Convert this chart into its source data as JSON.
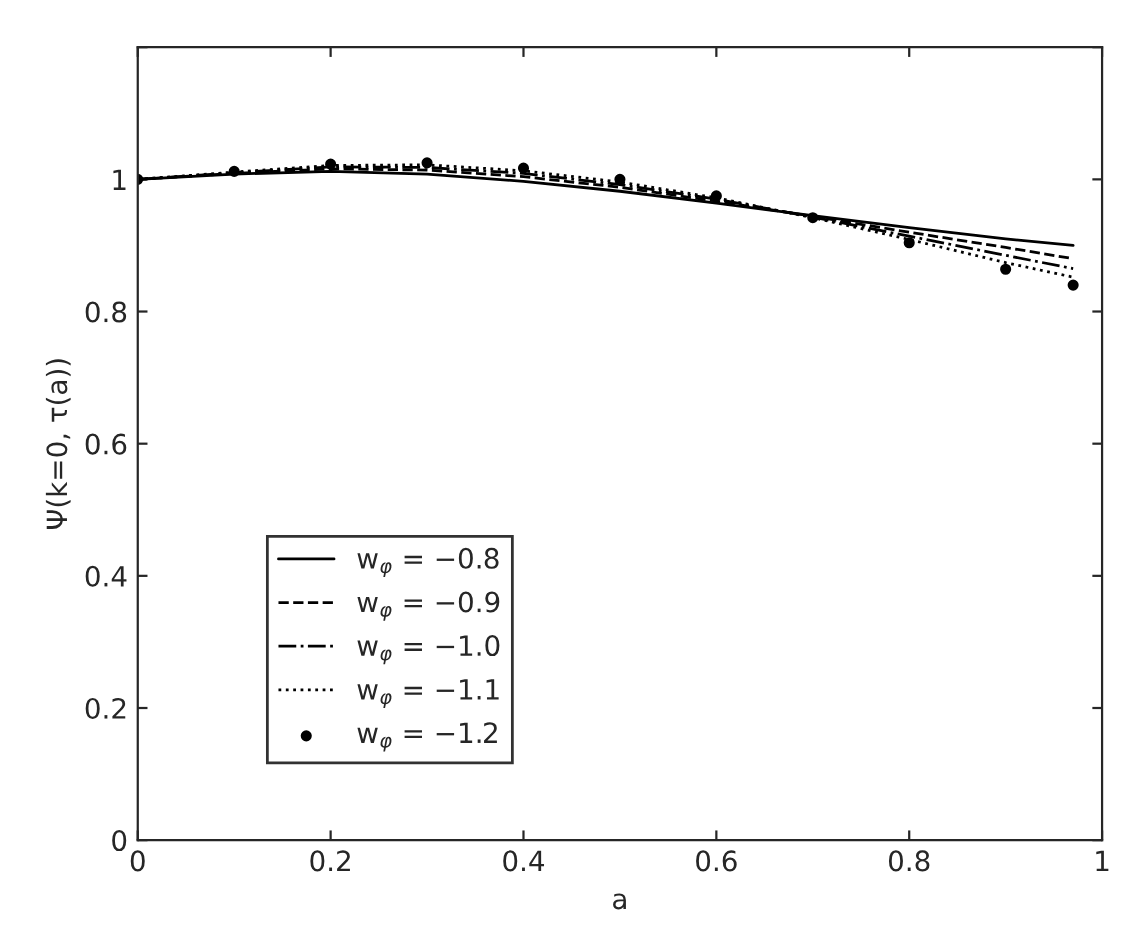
{
  "chart_data": {
    "type": "line",
    "xlabel": "a",
    "ylabel": "Ψ(k=0, τ(a))",
    "x": [
      0,
      0.1,
      0.2,
      0.3,
      0.4,
      0.5,
      0.6,
      0.7,
      0.8,
      0.9,
      0.97
    ],
    "series": [
      {
        "name": "w$_{φ}$ = −0.8",
        "color": "#000000",
        "line_style": "solid",
        "marker": "none",
        "values": [
          1.0,
          1.008,
          1.012,
          1.008,
          0.997,
          0.982,
          0.964,
          0.945,
          0.927,
          0.91,
          0.9
        ]
      },
      {
        "name": "w$_{φ}$ = −0.9",
        "color": "#000000",
        "line_style": "dashed",
        "marker": "none",
        "values": [
          1.0,
          1.009,
          1.016,
          1.014,
          1.004,
          0.988,
          0.967,
          0.944,
          0.92,
          0.897,
          0.88
        ]
      },
      {
        "name": "w$_{φ}$ = −1.0",
        "color": "#000000",
        "line_style": "dashdot",
        "marker": "none",
        "values": [
          1.0,
          1.01,
          1.019,
          1.018,
          1.009,
          0.992,
          0.97,
          0.943,
          0.914,
          0.885,
          0.865
        ]
      },
      {
        "name": "w$_{φ}$ = −1.1",
        "color": "#000000",
        "line_style": "dotted",
        "marker": "none",
        "values": [
          1.0,
          1.011,
          1.021,
          1.022,
          1.013,
          0.996,
          0.972,
          0.942,
          0.909,
          0.874,
          0.852
        ]
      },
      {
        "name": "w$_{φ}$ = −1.2",
        "color": "#000000",
        "type": "scatter",
        "marker": "circle",
        "values": [
          1.0,
          1.012,
          1.023,
          1.025,
          1.017,
          1.0,
          0.975,
          0.942,
          0.904,
          0.864,
          0.84
        ]
      }
    ],
    "xlim": [
      0,
      1
    ],
    "ylim": [
      0,
      1.2
    ],
    "xticks": [
      0,
      0.2,
      0.4,
      0.6,
      0.8,
      1
    ],
    "yticks": [
      0,
      0.2,
      0.4,
      0.6,
      0.8,
      1,
      {
        "value": 1.2,
        "label": null
      }
    ],
    "legend": "lower left",
    "grid": false
  }
}
